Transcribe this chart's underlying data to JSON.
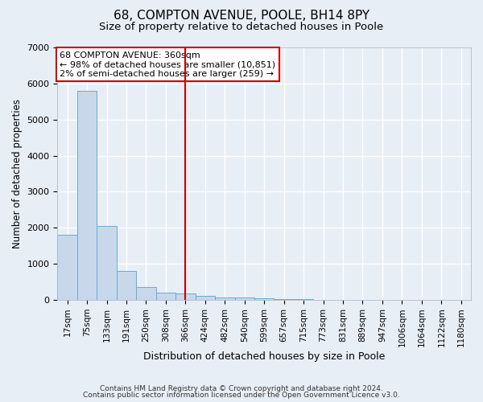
{
  "title1": "68, COMPTON AVENUE, POOLE, BH14 8PY",
  "title2": "Size of property relative to detached houses in Poole",
  "xlabel": "Distribution of detached houses by size in Poole",
  "ylabel": "Number of detached properties",
  "footnote1": "Contains HM Land Registry data © Crown copyright and database right 2024.",
  "footnote2": "Contains public sector information licensed under the Open Government Licence v3.0.",
  "bar_labels": [
    "17sqm",
    "75sqm",
    "133sqm",
    "191sqm",
    "250sqm",
    "308sqm",
    "366sqm",
    "424sqm",
    "482sqm",
    "540sqm",
    "599sqm",
    "657sqm",
    "715sqm",
    "773sqm",
    "831sqm",
    "889sqm",
    "947sqm",
    "1006sqm",
    "1064sqm",
    "1122sqm",
    "1180sqm"
  ],
  "bar_values": [
    1800,
    5800,
    2050,
    800,
    350,
    200,
    175,
    100,
    75,
    65,
    50,
    30,
    15,
    5,
    3,
    2,
    1,
    1,
    0,
    0,
    0
  ],
  "highlight_index": 6,
  "bar_color": "#c8d8ea",
  "bar_edge_color": "#6aaad4",
  "highlight_line_color": "#cc0000",
  "annotation_line1": "68 COMPTON AVENUE: 360sqm",
  "annotation_line2": "← 98% of detached houses are smaller (10,851)",
  "annotation_line3": "2% of semi-detached houses are larger (259) →",
  "annotation_box_color": "#ffffff",
  "annotation_border_color": "#cc0000",
  "ylim": [
    0,
    7000
  ],
  "yticks": [
    0,
    1000,
    2000,
    3000,
    4000,
    5000,
    6000,
    7000
  ],
  "bg_color": "#e8eef6",
  "grid_color": "#ffffff",
  "title1_fontsize": 11,
  "title2_fontsize": 9.5,
  "xlabel_fontsize": 9,
  "ylabel_fontsize": 8.5,
  "tick_fontsize": 7.5,
  "annotation_fontsize": 8,
  "footnote_fontsize": 6.5
}
